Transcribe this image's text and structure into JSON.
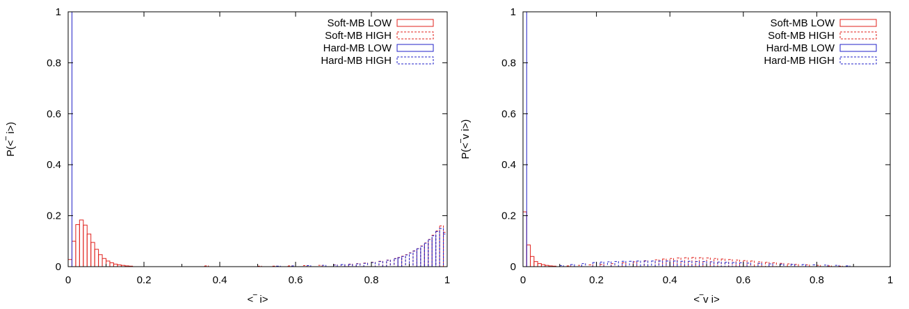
{
  "colors": {
    "soft": "#e0201b",
    "hard": "#2020c8",
    "axis": "#000000"
  },
  "chart_data": [
    {
      "type": "bar",
      "xlabel": "<‾ i>",
      "ylabel": "P(<‾ i>)",
      "xlim": [
        0,
        1
      ],
      "ylim": [
        0,
        1
      ],
      "xticks": [
        "0",
        "0.2",
        "0.4",
        "0.6",
        "0.8",
        "1"
      ],
      "yticks": [
        "0",
        "0.2",
        "0.4",
        "0.6",
        "0.8",
        "1"
      ],
      "grid": false,
      "legend_position": "top-right",
      "bin_width": 0.01,
      "series": [
        {
          "name": "Soft-MB LOW",
          "color": "soft",
          "dash": "solid",
          "x": [
            0.005,
            0.015,
            0.025,
            0.035,
            0.045,
            0.055,
            0.065,
            0.075,
            0.085,
            0.095,
            0.105,
            0.115,
            0.125,
            0.135,
            0.145,
            0.155,
            0.165
          ],
          "values": [
            0.028,
            0.1,
            0.165,
            0.183,
            0.163,
            0.128,
            0.095,
            0.068,
            0.047,
            0.032,
            0.022,
            0.015,
            0.01,
            0.007,
            0.005,
            0.003,
            0.002
          ]
        },
        {
          "name": "Soft-MB HIGH",
          "color": "soft",
          "dash": "dashed",
          "x": [
            0.365,
            0.505,
            0.545,
            0.585,
            0.625,
            0.665,
            0.705,
            0.725,
            0.745,
            0.765,
            0.785,
            0.805,
            0.825,
            0.845,
            0.865,
            0.875,
            0.885,
            0.895,
            0.905,
            0.915,
            0.925,
            0.935,
            0.945,
            0.955,
            0.965,
            0.975,
            0.985,
            0.995
          ],
          "values": [
            0.003,
            0.002,
            0.002,
            0.003,
            0.004,
            0.005,
            0.007,
            0.008,
            0.01,
            0.012,
            0.014,
            0.017,
            0.021,
            0.026,
            0.032,
            0.036,
            0.041,
            0.047,
            0.054,
            0.062,
            0.071,
            0.081,
            0.093,
            0.107,
            0.123,
            0.14,
            0.16,
            0.135
          ]
        },
        {
          "name": "Hard-MB LOW",
          "color": "hard",
          "dash": "solid",
          "x": [
            0.005
          ],
          "values": [
            1.0
          ]
        },
        {
          "name": "Hard-MB HIGH",
          "color": "hard",
          "dash": "dashed",
          "x": [
            0.555,
            0.595,
            0.635,
            0.675,
            0.705,
            0.725,
            0.745,
            0.765,
            0.785,
            0.805,
            0.825,
            0.845,
            0.865,
            0.875,
            0.885,
            0.895,
            0.905,
            0.915,
            0.925,
            0.935,
            0.945,
            0.955,
            0.965,
            0.975,
            0.985,
            0.995
          ],
          "values": [
            0.002,
            0.003,
            0.004,
            0.005,
            0.006,
            0.008,
            0.009,
            0.011,
            0.013,
            0.016,
            0.02,
            0.025,
            0.031,
            0.035,
            0.04,
            0.046,
            0.053,
            0.061,
            0.07,
            0.08,
            0.092,
            0.106,
            0.121,
            0.138,
            0.15,
            0.128
          ]
        }
      ]
    },
    {
      "type": "bar",
      "xlabel": "<‾v i>",
      "ylabel": "P(<‾v i>)",
      "xlim": [
        0,
        1
      ],
      "ylim": [
        0,
        1
      ],
      "xticks": [
        "0",
        "0.2",
        "0.4",
        "0.6",
        "0.8",
        "1"
      ],
      "yticks": [
        "0",
        "0.2",
        "0.4",
        "0.6",
        "0.8",
        "1"
      ],
      "grid": false,
      "legend_position": "top-right",
      "bin_width": 0.01,
      "series": [
        {
          "name": "Soft-MB LOW",
          "color": "soft",
          "dash": "solid",
          "x": [
            0.005,
            0.015,
            0.025,
            0.035,
            0.045,
            0.055,
            0.065,
            0.075,
            0.085
          ],
          "values": [
            0.215,
            0.085,
            0.04,
            0.02,
            0.012,
            0.008,
            0.005,
            0.003,
            0.002
          ]
        },
        {
          "name": "Soft-MB HIGH",
          "color": "soft",
          "dash": "dashed",
          "x": [
            0.125,
            0.155,
            0.185,
            0.215,
            0.245,
            0.275,
            0.305,
            0.335,
            0.365,
            0.385,
            0.405,
            0.425,
            0.445,
            0.465,
            0.485,
            0.505,
            0.525,
            0.545,
            0.565,
            0.585,
            0.605,
            0.625,
            0.645,
            0.665,
            0.685,
            0.705,
            0.725,
            0.745,
            0.775,
            0.805,
            0.835,
            0.865
          ],
          "values": [
            0.003,
            0.005,
            0.007,
            0.009,
            0.012,
            0.015,
            0.019,
            0.023,
            0.027,
            0.03,
            0.032,
            0.034,
            0.035,
            0.036,
            0.035,
            0.034,
            0.032,
            0.03,
            0.028,
            0.026,
            0.024,
            0.022,
            0.019,
            0.017,
            0.015,
            0.013,
            0.011,
            0.009,
            0.007,
            0.005,
            0.003,
            0.002
          ]
        },
        {
          "name": "Hard-MB LOW",
          "color": "hard",
          "dash": "solid",
          "x": [
            0.005
          ],
          "values": [
            1.0
          ]
        },
        {
          "name": "Hard-MB HIGH",
          "color": "hard",
          "dash": "dashed",
          "x": [
            0.105,
            0.135,
            0.165,
            0.195,
            0.215,
            0.235,
            0.255,
            0.275,
            0.295,
            0.315,
            0.335,
            0.355,
            0.375,
            0.395,
            0.415,
            0.435,
            0.455,
            0.475,
            0.495,
            0.515,
            0.535,
            0.555,
            0.575,
            0.595,
            0.615,
            0.645,
            0.675,
            0.705,
            0.735,
            0.765,
            0.795,
            0.825,
            0.855,
            0.885
          ],
          "values": [
            0.004,
            0.008,
            0.012,
            0.016,
            0.018,
            0.019,
            0.02,
            0.021,
            0.021,
            0.022,
            0.022,
            0.022,
            0.022,
            0.022,
            0.022,
            0.021,
            0.021,
            0.02,
            0.02,
            0.019,
            0.018,
            0.017,
            0.016,
            0.015,
            0.014,
            0.013,
            0.011,
            0.01,
            0.009,
            0.008,
            0.007,
            0.006,
            0.005,
            0.003
          ]
        }
      ]
    }
  ]
}
